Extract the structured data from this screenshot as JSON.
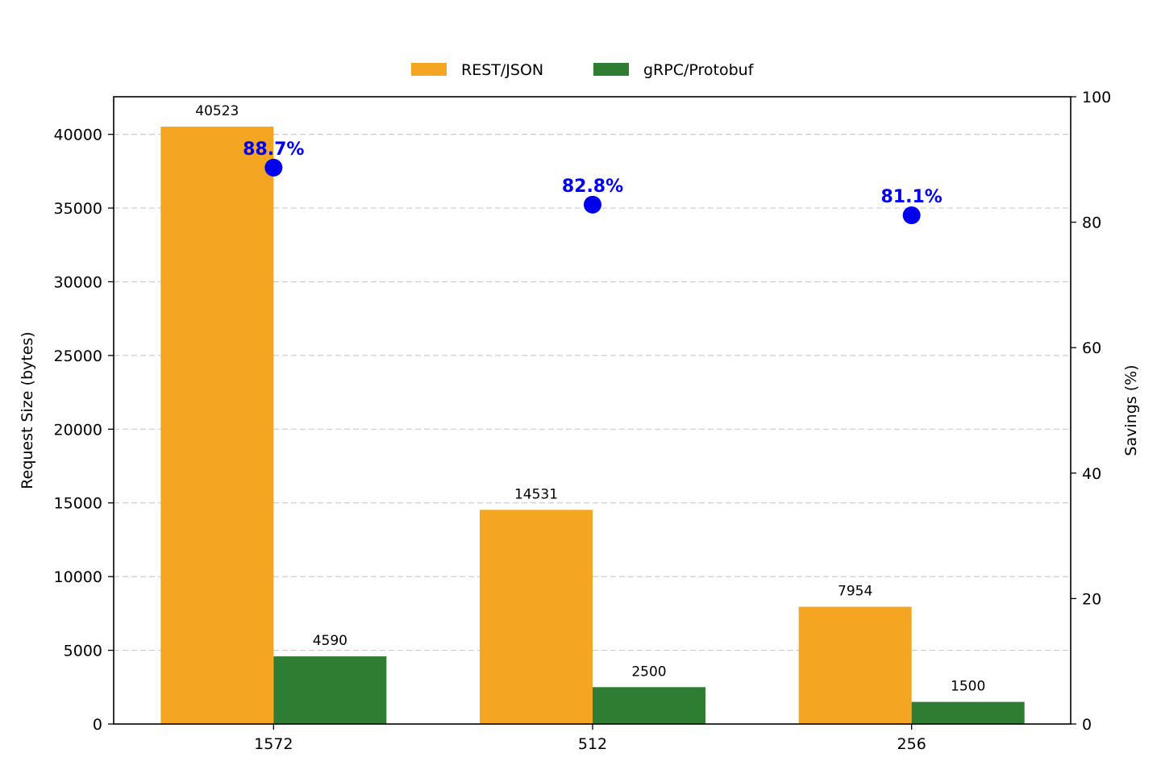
{
  "chart_data": {
    "type": "bar",
    "categories": [
      "1572",
      "512",
      "256"
    ],
    "series": [
      {
        "name": "REST/JSON",
        "values": [
          40523,
          14531,
          7954
        ],
        "color": "#f4a623"
      },
      {
        "name": "gRPC/Protobuf",
        "values": [
          4590,
          2500,
          1500
        ],
        "color": "#2e7d32"
      }
    ],
    "savings": {
      "values": [
        88.7,
        82.8,
        81.1
      ],
      "labels": [
        "88.7%",
        "82.8%",
        "81.1%"
      ],
      "color": "#0000ee",
      "marker": "circle"
    },
    "title": "",
    "xlabel": "",
    "ylabel": "Request Size (bytes)",
    "ylabel_right": "Savings (%)",
    "ylim": [
      0,
      42550
    ],
    "ylim_right": [
      0,
      100
    ],
    "yticks": [
      0,
      5000,
      10000,
      15000,
      20000,
      25000,
      30000,
      35000,
      40000
    ],
    "yticks_right": [
      0,
      20,
      40,
      60,
      80,
      100
    ],
    "grid": "horizontal dashed",
    "legend_position": "top-center"
  }
}
